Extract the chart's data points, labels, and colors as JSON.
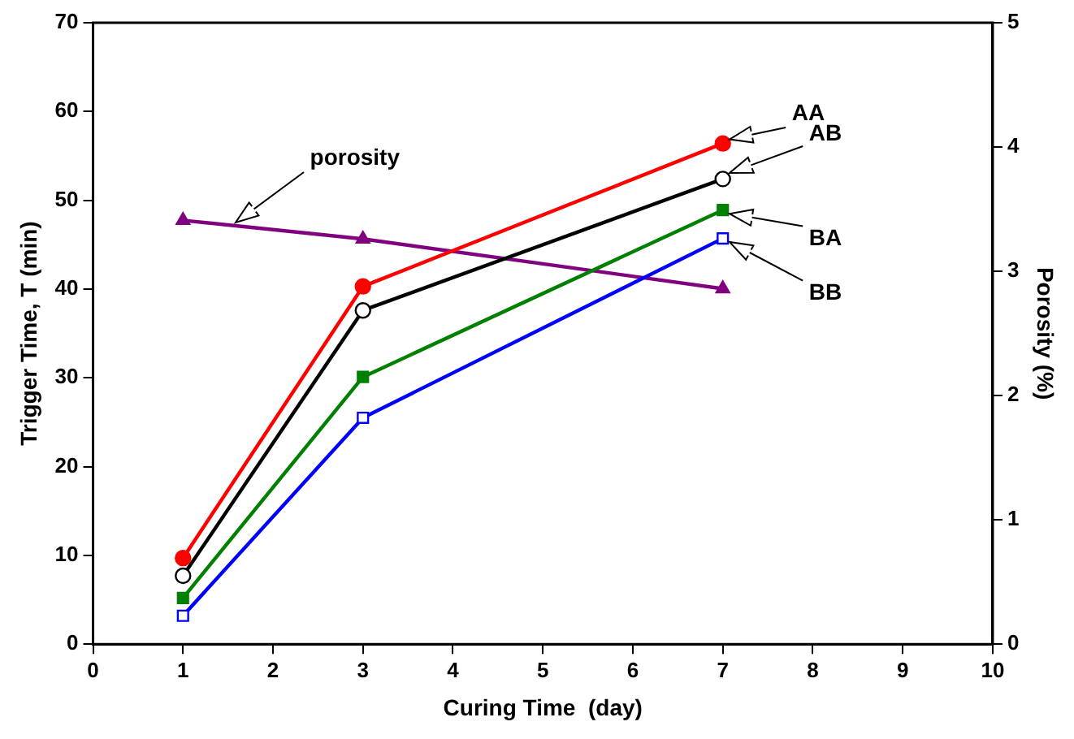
{
  "chart_data": {
    "type": "line",
    "xlabel": "Curing Time  (day)",
    "ylabel": "Trigger Time, T (min)",
    "y2label": "Porosity (%)",
    "x": [
      1,
      3,
      7
    ],
    "series": [
      {
        "color": "#ff0000",
        "marker": "circle",
        "values": [
          9.7,
          40.3,
          56.4
        ]
      },
      {
        "color": "#000000",
        "marker": "circle",
        "values": [
          7.7,
          37.6,
          52.4
        ]
      },
      {
        "color": "#008000",
        "marker": "square",
        "values": [
          5.2,
          30.1,
          48.9
        ]
      },
      {
        "color": "#0000ff",
        "marker": "square",
        "values": [
          3.2,
          25.5,
          45.7
        ]
      },
      {
        "color": "#800080",
        "marker": "triangle",
        "axis": "y2",
        "values": [
          3.41,
          3.26,
          2.86
        ]
      }
    ],
    "xlim": [
      0,
      10
    ],
    "xticks": [
      0,
      1,
      2,
      3,
      4,
      5,
      6,
      7,
      8,
      9,
      10
    ],
    "ylim": [
      0,
      70
    ],
    "yticks": [
      0,
      10,
      20,
      30,
      40,
      50,
      60,
      70
    ],
    "y2lim": [
      0,
      5
    ],
    "y2ticks": [
      0,
      1,
      2,
      3,
      4,
      5
    ],
    "grid": false,
    "legend": false,
    "annotations": [
      "AA",
      "AB",
      "BA",
      "BB",
      "porosity"
    ]
  }
}
